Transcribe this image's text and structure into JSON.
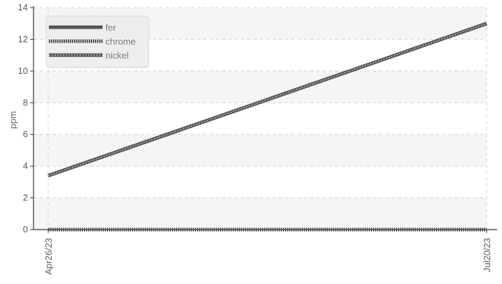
{
  "chart_data": {
    "type": "line",
    "x": [
      "Apr26/23",
      "Jul20/23"
    ],
    "ylabel": "ppm",
    "xlabel": "",
    "ylim": [
      0,
      14
    ],
    "yticks": [
      0,
      2,
      4,
      6,
      8,
      10,
      12,
      14
    ],
    "grid": true,
    "legend_position": "top-left",
    "series": [
      {
        "name": "fer",
        "values": [
          3.4,
          13.0
        ],
        "color": "#555555",
        "style": "solid"
      },
      {
        "name": "chrome",
        "values": [
          0,
          0
        ],
        "color": "#555555",
        "style": "dotted"
      },
      {
        "name": "nickel",
        "values": [
          3.4,
          13.0
        ],
        "color": "#555555",
        "style": "dotted-light"
      }
    ],
    "colors": {
      "band": "#f5f5f5",
      "grid": "#d4d4d4",
      "axis": "#333333"
    }
  }
}
